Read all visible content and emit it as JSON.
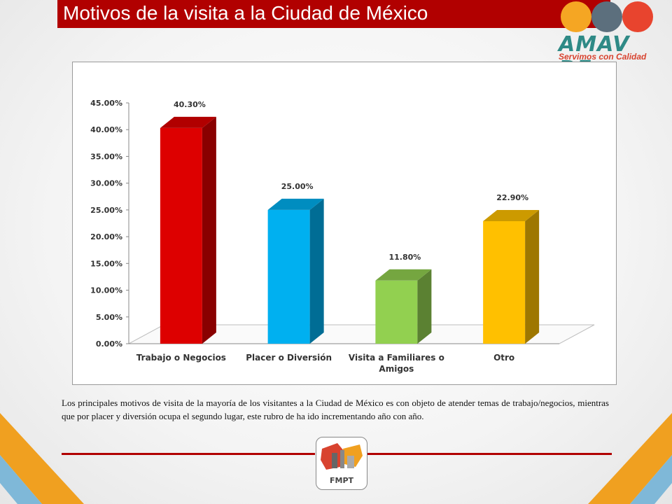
{
  "header": {
    "title": "Motivos de la visita a la Ciudad de México"
  },
  "logo": {
    "name": "AMAV DF",
    "tagline": "Servimos con Calidad",
    "colors": [
      "#f5a623",
      "#5c6f7d",
      "#e8442e"
    ]
  },
  "chart_data": {
    "type": "bar",
    "style": "3d",
    "categories": [
      "Trabajo o Negocios",
      "Placer o Diversión",
      "Visita a Familiares o Amigos",
      "Otro"
    ],
    "values": [
      40.3,
      25.0,
      11.8,
      22.9
    ],
    "value_labels": [
      "40.30%",
      "25.00%",
      "11.80%",
      "22.90%"
    ],
    "colors": [
      "#dd0000",
      "#00b0f0",
      "#92d050",
      "#ffc000"
    ],
    "yticks": [
      "0.00%",
      "5.00%",
      "10.00%",
      "15.00%",
      "20.00%",
      "25.00%",
      "30.00%",
      "35.00%",
      "40.00%",
      "45.00%"
    ],
    "ylim": [
      0,
      45
    ],
    "title": "",
    "xlabel": "",
    "ylabel": "",
    "grid": false,
    "legend": "none"
  },
  "caption": {
    "text": "Los principales motivos de visita de la mayoría de los visitantes a la Ciudad de México es con objeto de atender temas de trabajo/negocios, mientras que por placer y diversión ocupa el segundo lugar, este rubro de ha ido incrementando año con año."
  },
  "footer": {
    "logo_label": "FMPT"
  }
}
